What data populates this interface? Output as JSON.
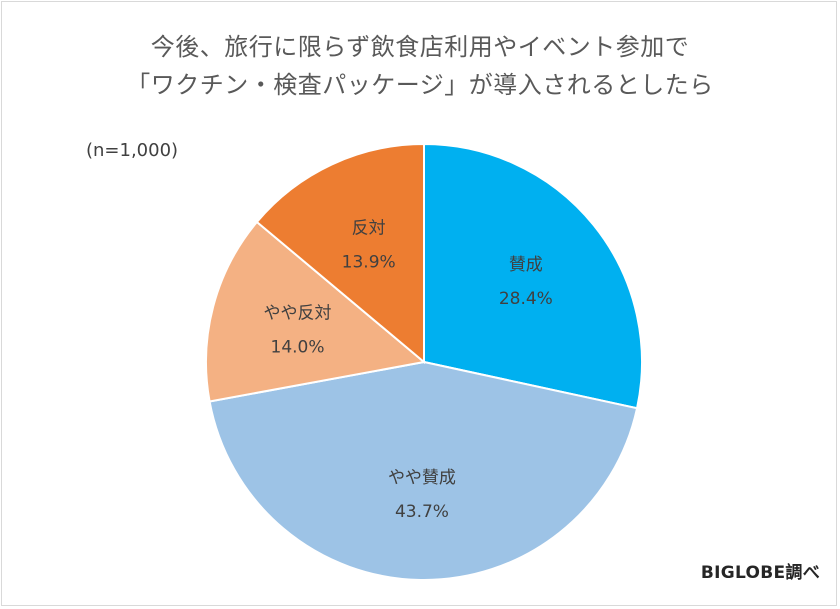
{
  "title_line1": "今後、旅行に限らず飲食店利用やイベント参加で",
  "title_line2": "「ワクチン・検査パッケージ」が導入されるとしたら",
  "sample_note": "(n=1,000)",
  "credit": "BIGLOBE調べ",
  "chart_data": {
    "type": "pie",
    "title": "今後、旅行に限らず飲食店利用やイベント参加で「ワクチン・検査パッケージ」が導入されるとしたら",
    "start": "12 o'clock",
    "direction": "clockwise",
    "slices": [
      {
        "label": "賛成",
        "value": 28.4,
        "value_label": "28.4%",
        "color": "#00b0f0"
      },
      {
        "label": "やや賛成",
        "value": 43.7,
        "value_label": "43.7%",
        "color": "#9dc3e6"
      },
      {
        "label": "やや反対",
        "value": 14.0,
        "value_label": "14.0%",
        "color": "#f4b183"
      },
      {
        "label": "反対",
        "value": 13.9,
        "value_label": "13.9%",
        "color": "#ed7d31"
      }
    ]
  }
}
